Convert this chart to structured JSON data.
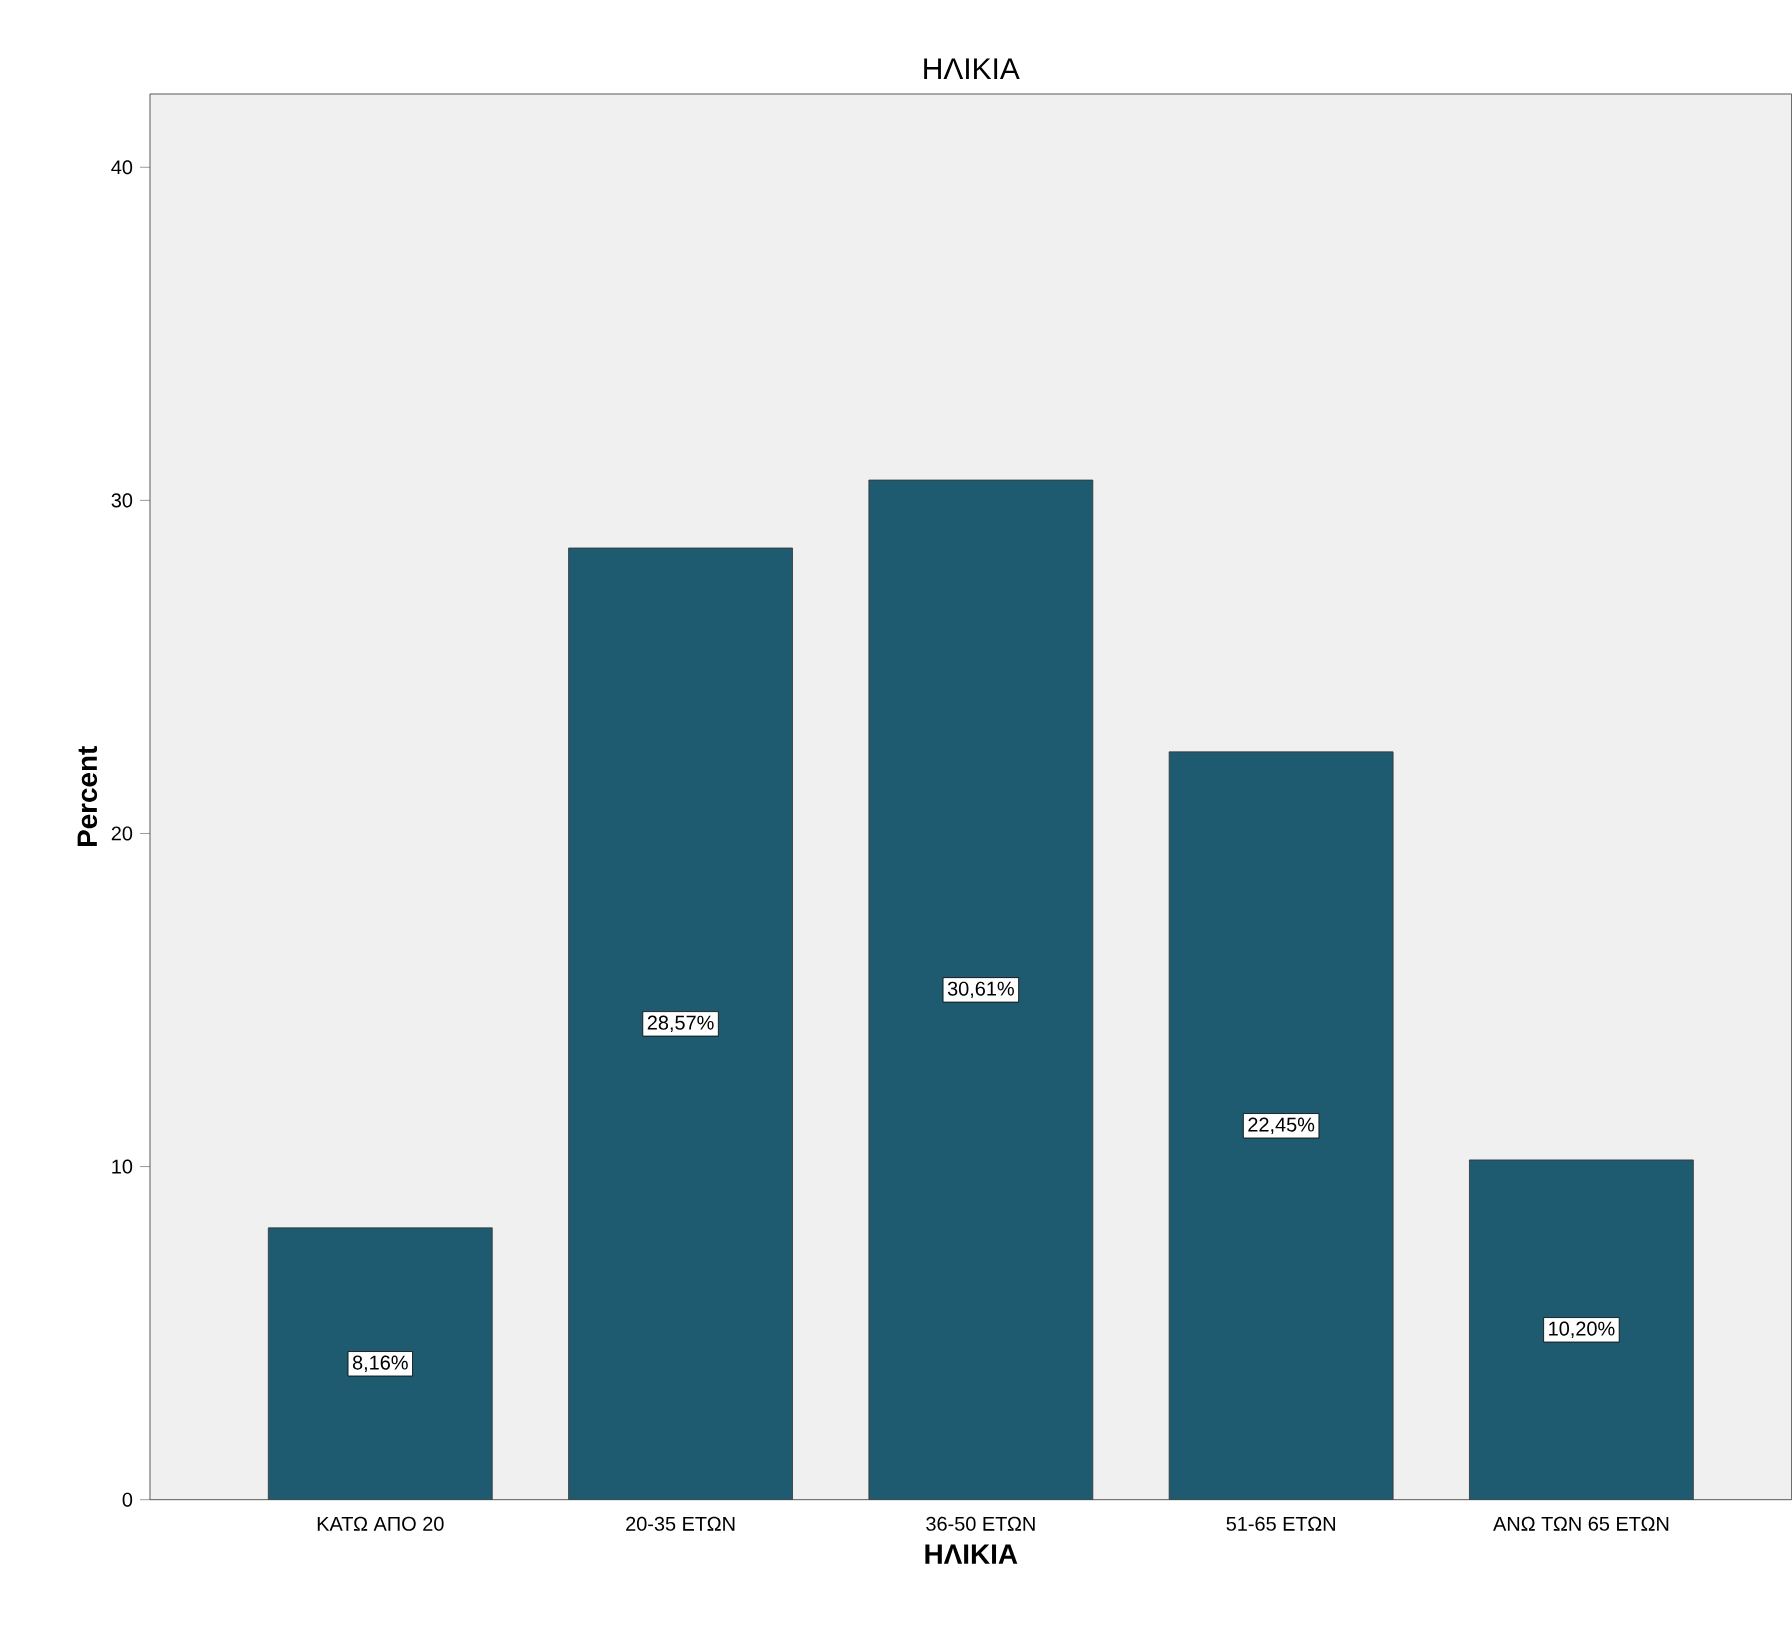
{
  "chart_data": {
    "type": "bar",
    "title": "ΗΛΙΚΙΑ",
    "xlabel": "ΗΛΙΚΙΑ",
    "ylabel": "Percent",
    "categories": [
      "ΚΑΤΩ ΑΠΟ 20",
      "20-35 ΕΤΩΝ",
      "36-50 ΕΤΩΝ",
      "51-65 ΕΤΩΝ",
      "ΑΝΩ ΤΩΝ 65 ΕΤΩΝ"
    ],
    "values": [
      8.16,
      28.57,
      30.61,
      22.45,
      10.2
    ],
    "value_labels": [
      "8,16%",
      "28,57%",
      "30,61%",
      "22,45%",
      "10,20%"
    ],
    "color": "#1f5b70",
    "ylim": [
      0,
      42.2
    ],
    "yticks": [
      0,
      10,
      20,
      30,
      40
    ]
  }
}
